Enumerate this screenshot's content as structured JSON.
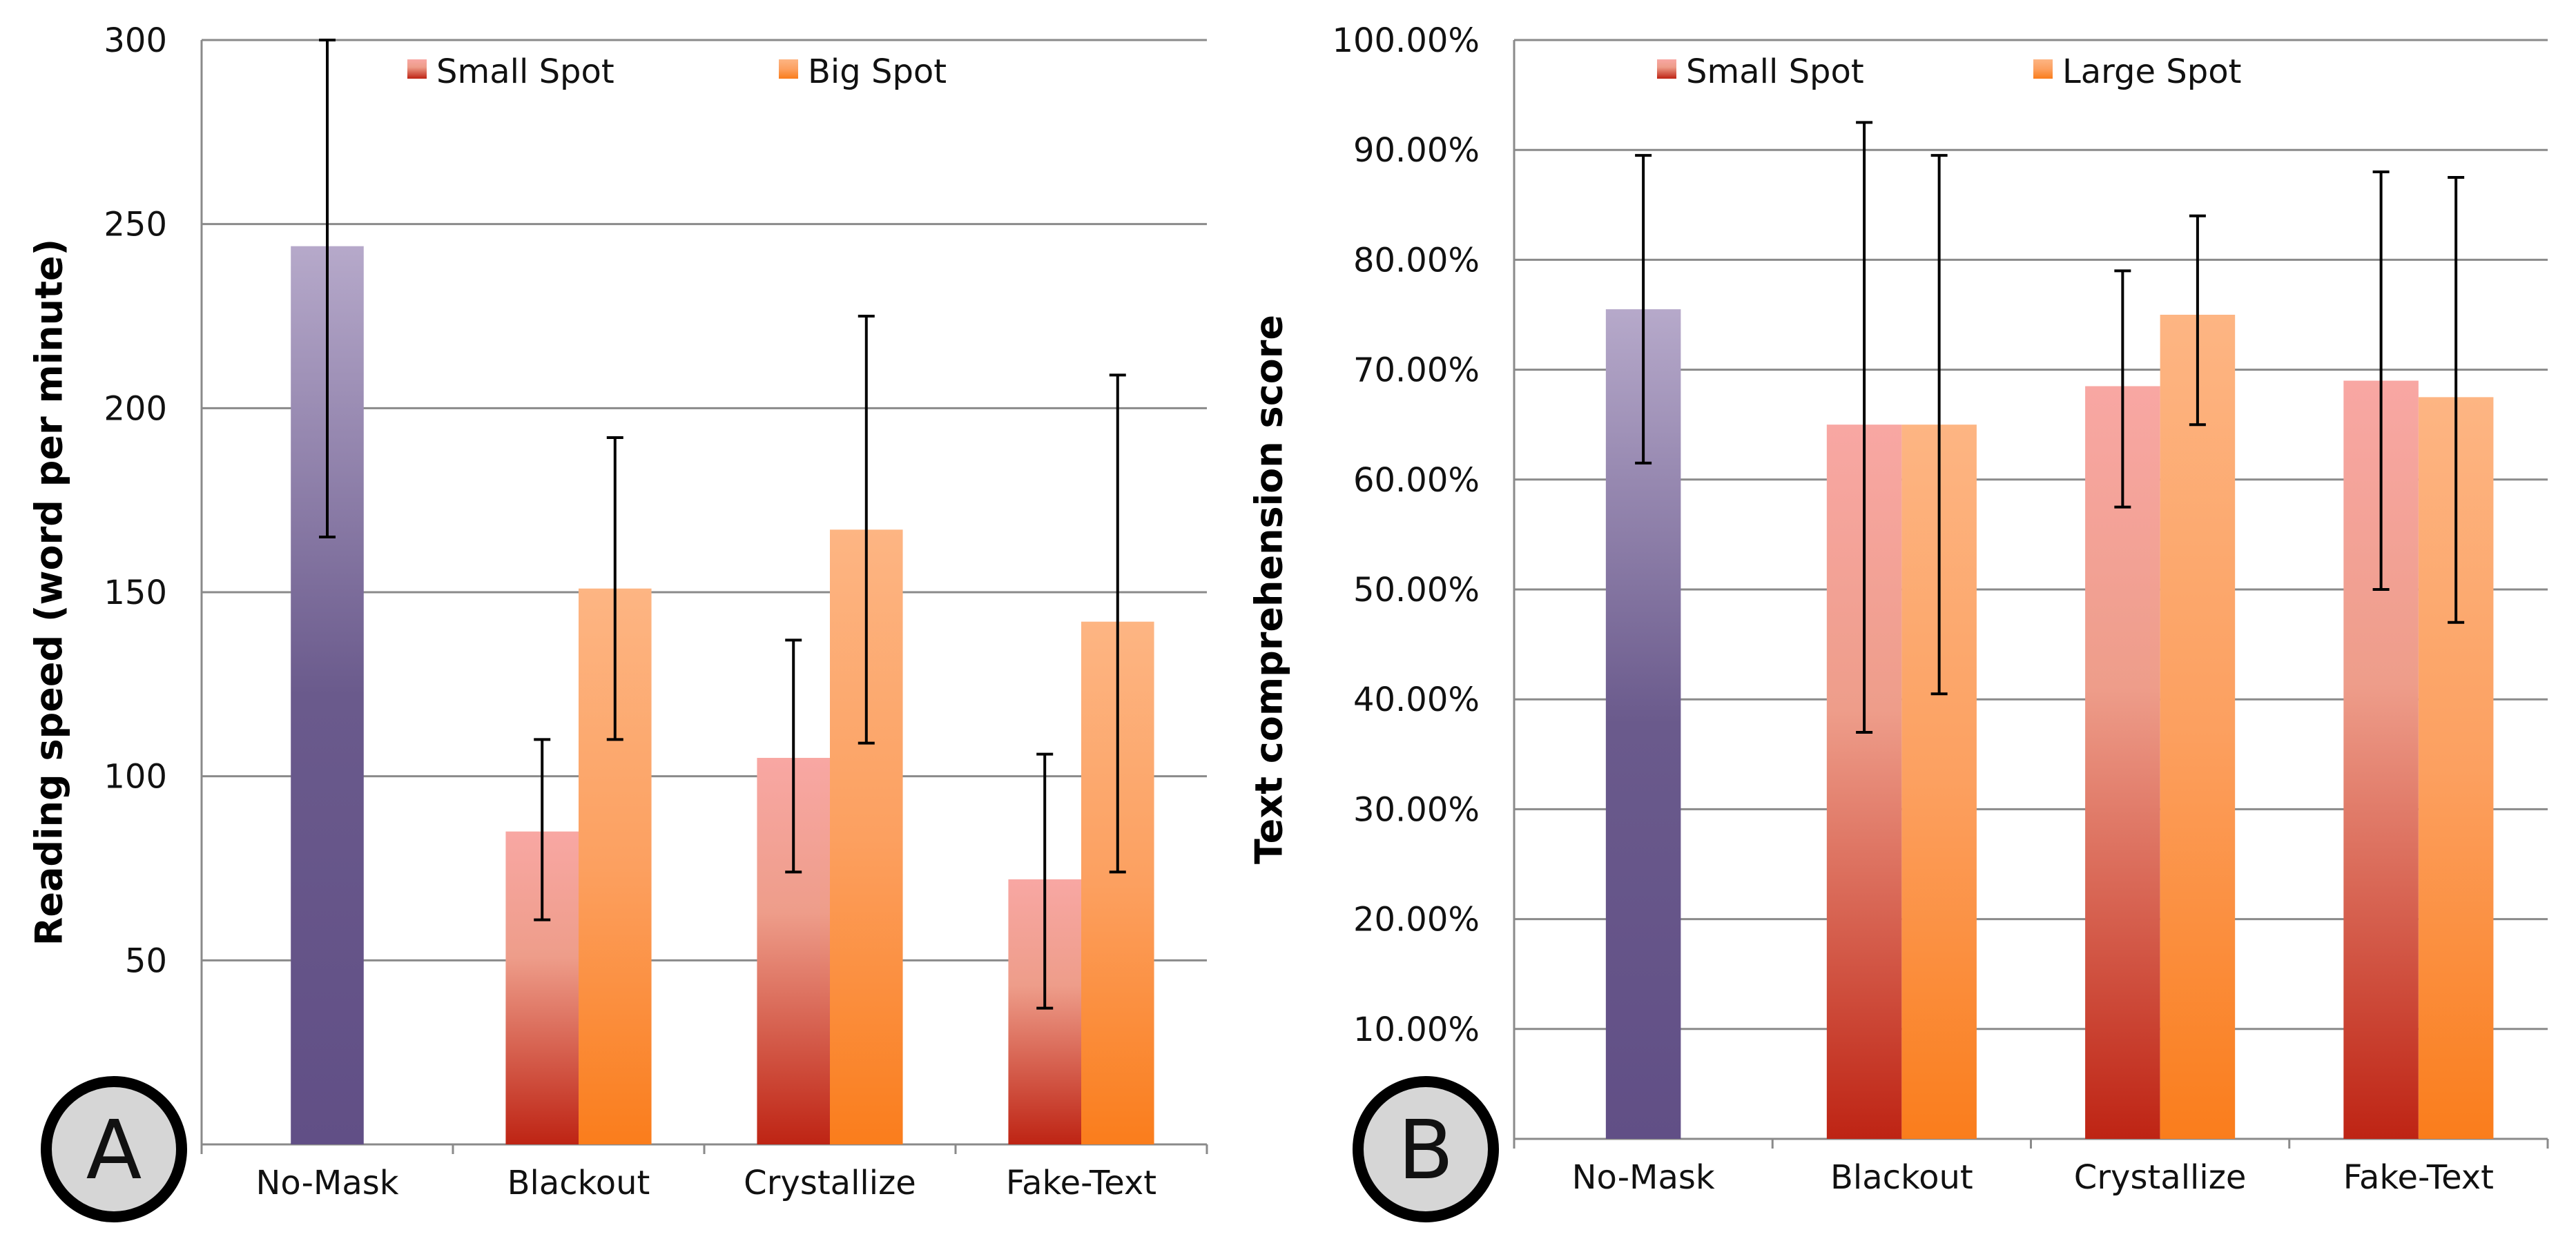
{
  "chart_data": [
    {
      "type": "bar",
      "panel_label": "A",
      "title": "",
      "xlabel": "",
      "ylabel": "Reading speed (word per minute)",
      "ylim": [
        0,
        300
      ],
      "yticks": [
        50,
        100,
        150,
        200,
        250,
        300
      ],
      "ytick_labels": [
        "50",
        "100",
        "150",
        "200",
        "250",
        "300"
      ],
      "categories": [
        "No-Mask",
        "Blackout",
        "Crystallize",
        "Fake-Text"
      ],
      "legend": {
        "placement": "top",
        "entries": [
          "Small Spot",
          "Big Spot"
        ]
      },
      "control": {
        "category": "No-Mask",
        "value": 244,
        "err_low": 165,
        "err_high": 300,
        "color": "#6a5a8c"
      },
      "series": [
        {
          "name": "Small Spot",
          "color": "#c83a2a",
          "values": [
            null,
            85,
            105,
            72
          ],
          "err_low": [
            null,
            61,
            74,
            37
          ],
          "err_high": [
            null,
            110,
            137,
            106
          ]
        },
        {
          "name": "Big Spot",
          "color": "#f98a2e",
          "values": [
            null,
            151,
            167,
            142
          ],
          "err_low": [
            null,
            110,
            109,
            74
          ],
          "err_high": [
            null,
            192,
            225,
            209
          ]
        }
      ],
      "grid": true
    },
    {
      "type": "bar",
      "panel_label": "B",
      "title": "",
      "xlabel": "",
      "ylabel": "Text comprehension score",
      "ylim": [
        0,
        100
      ],
      "yticks": [
        10,
        20,
        30,
        40,
        50,
        60,
        70,
        80,
        90,
        100
      ],
      "ytick_labels": [
        "10.00%",
        "20.00%",
        "30.00%",
        "40.00%",
        "50.00%",
        "60.00%",
        "70.00%",
        "80.00%",
        "90.00%",
        "100.00%"
      ],
      "categories": [
        "No-Mask",
        "Blackout",
        "Crystallize",
        "Fake-Text"
      ],
      "legend": {
        "placement": "top",
        "entries": [
          "Small Spot",
          "Large Spot"
        ]
      },
      "control": {
        "category": "No-Mask",
        "value": 75.5,
        "err_low": 61.5,
        "err_high": 89.5,
        "color": "#6a5a8c"
      },
      "series": [
        {
          "name": "Small Spot",
          "color": "#c83a2a",
          "values": [
            null,
            65,
            68.5,
            69
          ],
          "err_low": [
            null,
            37,
            57.5,
            50
          ],
          "err_high": [
            null,
            92.5,
            79,
            88
          ]
        },
        {
          "name": "Large Spot",
          "color": "#f98a2e",
          "values": [
            null,
            65,
            75,
            67.5
          ],
          "err_low": [
            null,
            40.5,
            65,
            47
          ],
          "err_high": [
            null,
            89.5,
            84,
            87.5
          ]
        }
      ],
      "grid": true
    }
  ]
}
